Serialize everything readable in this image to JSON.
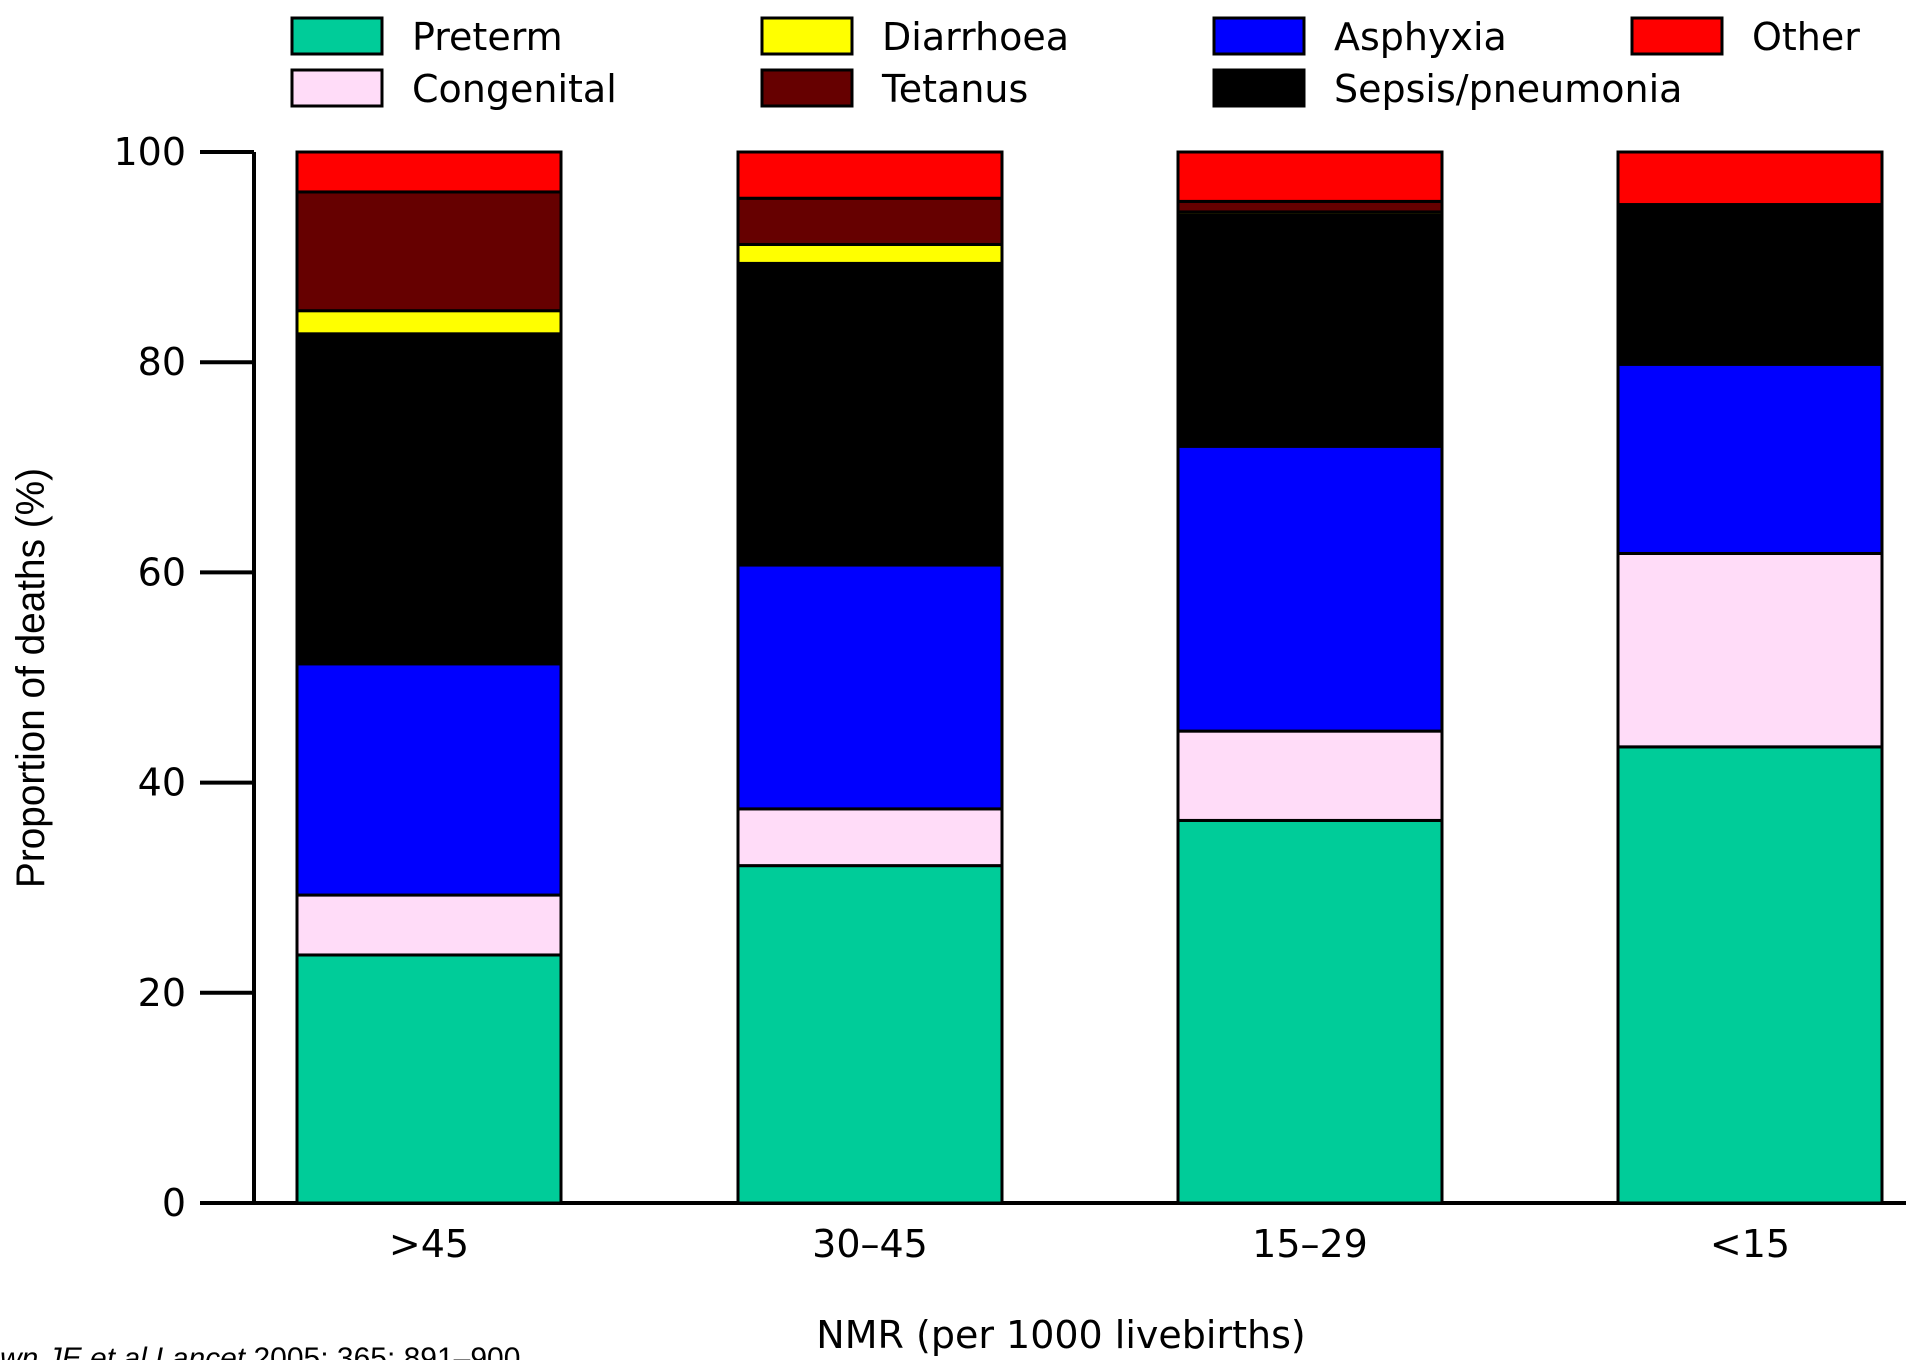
{
  "chart_data": {
    "type": "bar",
    "stacked": true,
    "title": "",
    "xlabel": "NMR (per 1000 livebirths)",
    "ylabel": "Proportion of deaths (%)",
    "ylim": [
      0,
      100
    ],
    "yticks": [
      0,
      20,
      40,
      60,
      80,
      100
    ],
    "categories": [
      ">45",
      "30–45",
      "15–29",
      "<15"
    ],
    "legend_position": "top",
    "series": [
      {
        "name": "Preterm",
        "color": "#00cc99",
        "values": [
          23.6,
          32.1,
          36.4,
          43.4
        ]
      },
      {
        "name": "Congenital",
        "color": "#ffdcf8",
        "values": [
          5.7,
          5.4,
          8.5,
          18.4
        ]
      },
      {
        "name": "Asphyxia",
        "color": "#0000ff",
        "values": [
          22.0,
          23.2,
          27.1,
          18.0
        ]
      },
      {
        "name": "Sepsis/pneumonia",
        "color": "#000000",
        "values": [
          31.4,
          28.7,
          22.0,
          15.2
        ]
      },
      {
        "name": "Diarrhoea",
        "color": "#ffff00",
        "values": [
          2.2,
          1.8,
          0.3,
          0.0
        ]
      },
      {
        "name": "Tetanus",
        "color": "#660000",
        "values": [
          11.3,
          4.4,
          1.0,
          0.0
        ]
      },
      {
        "name": "Other",
        "color": "#ff0000",
        "values": [
          3.8,
          4.4,
          4.7,
          5.0
        ]
      }
    ],
    "legend_order": [
      "Preterm",
      "Diarrhoea",
      "Asphyxia",
      "Other",
      "Congenital",
      "Tetanus",
      "Sepsis/pneumonia"
    ]
  },
  "source": {
    "italic_part": "wn JE et al Lancet",
    "plain_part": " 2005;  365:  891–900"
  }
}
